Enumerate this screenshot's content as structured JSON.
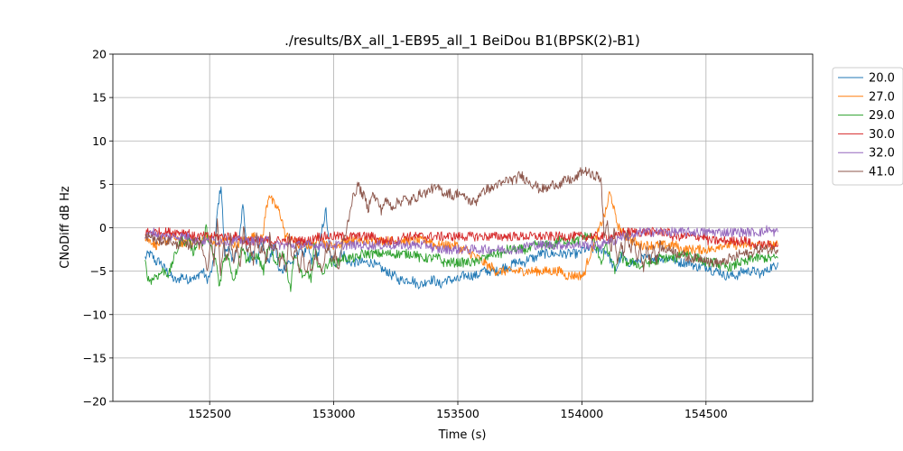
{
  "chart_data": {
    "type": "line",
    "title": "./results/BX_all_1-EB95_all_1 BeiDou B1(BPSK(2)-B1)",
    "xlabel": "Time (s)",
    "ylabel": "CNoDiff dB Hz",
    "xlim": [
      152110,
      154930
    ],
    "ylim": [
      -20,
      20
    ],
    "xticks": [
      152500,
      153000,
      153500,
      154000,
      154500
    ],
    "yticks": [
      -20,
      -15,
      -10,
      -5,
      0,
      5,
      10,
      15,
      20
    ],
    "xtick_labels": [
      "152500",
      "153000",
      "153500",
      "154000",
      "154500"
    ],
    "ytick_labels": [
      "−20",
      "−15",
      "−10",
      "−5",
      "0",
      "5",
      "10",
      "15",
      "20"
    ],
    "grid": true,
    "legend_position": "outside-top-right",
    "x_step": 20,
    "series": [
      {
        "name": "20.0",
        "color": "#1f77b4",
        "x_start": 152240,
        "x_end": 154790,
        "values": [
          -3.5,
          -3,
          -3.2,
          -4,
          -3.8,
          -4.5,
          -5,
          -5.5,
          -6,
          -6.2,
          -5.5,
          -5.8,
          -6,
          -5.5,
          -6,
          -5.2,
          -5,
          -6,
          -5.5,
          -4,
          2,
          5,
          -3,
          -2,
          -4,
          -3,
          -2,
          3,
          -2,
          -4,
          -3,
          -4,
          -1,
          -3,
          -4,
          -3,
          -2,
          -5,
          -5,
          -4,
          -4,
          -4,
          -3,
          -2,
          -3,
          -2,
          -4,
          -3,
          -3,
          0,
          2,
          -3,
          -4,
          -4,
          -3,
          -3,
          -4,
          -4,
          -4,
          -4,
          -4,
          -4,
          -4,
          -4,
          -4.5,
          -4.5,
          -5,
          -5,
          -5.5,
          -5.5,
          -6,
          -6,
          -6,
          -6,
          -6,
          -6.5,
          -6.5,
          -6.5,
          -6,
          -6,
          -6,
          -6.5,
          -6.5,
          -6,
          -6,
          -6,
          -6,
          -6,
          -5.5,
          -5.5,
          -5.5,
          -5.5,
          -5.5,
          -5,
          -5,
          -5,
          -5,
          -5,
          -5,
          -4.5,
          -4.5,
          -4.5,
          -4,
          -4,
          -4,
          -4,
          -3.5,
          -3.5,
          -3.5,
          -3,
          -3,
          -3,
          -3,
          -3,
          -3,
          -3,
          -3,
          -3,
          -3,
          -3,
          -3,
          -2.5,
          -2.5,
          -2.5,
          -2.5,
          -2.5,
          -2.5,
          -2.5,
          -3,
          -4,
          -5,
          -4,
          -3,
          -4,
          -4,
          -4,
          -4,
          -3.5,
          -3.5,
          -3.5,
          -3.5,
          -3.5,
          -3.5,
          -3.5,
          -3.5,
          -3.5,
          -3.5,
          -4,
          -4,
          -4,
          -4,
          -4,
          -4.5,
          -4.5,
          -4.5,
          -4.5,
          -4.5,
          -5,
          -5,
          -5,
          -5.5,
          -5.5,
          -5.5,
          -5.5,
          -5.5,
          -5,
          -5,
          -5,
          -5,
          -5,
          -5.5,
          -5,
          -5,
          -4.5,
          -4.5,
          -4
        ]
      },
      {
        "name": "27.0",
        "color": "#ff7f0e",
        "x_start": 152240,
        "x_end": 154790,
        "values": [
          -1,
          -1.5,
          -1.5,
          -2,
          -2,
          -1.5,
          -1.5,
          -1.5,
          -1,
          -1,
          -1.5,
          -1.5,
          -2,
          -1.5,
          -1.5,
          -1.5,
          -1.5,
          -2,
          -1.5,
          -1,
          -1,
          -1.5,
          -2,
          -2,
          -1.5,
          -1.5,
          -1.5,
          -1.5,
          -2,
          -2,
          -1.5,
          -1.5,
          -1.5,
          -1,
          -1,
          -1,
          -1.5,
          -1,
          2,
          4,
          3,
          2.5,
          2,
          1,
          -1,
          -1,
          -1.5,
          -1.5,
          -2,
          -2,
          -2,
          -2,
          -2,
          -2,
          -1.5,
          -1.5,
          -1.5,
          -2,
          -2,
          -2,
          -2,
          -2,
          -1.5,
          -1.5,
          -1.5,
          -1.5,
          -1.5,
          -1.5,
          -1.5,
          -1.5,
          -1.5,
          -1.5,
          -1.5,
          -1.5,
          -1.5,
          -1.5,
          -1.5,
          -1.5,
          -1.5,
          -1.5,
          -1.5,
          -1.5,
          -1.5,
          -1.5,
          -1.5,
          -1.5,
          -1.5,
          -1.5,
          -1.5,
          -1.5,
          -1.5,
          -2,
          -2,
          -2,
          -2,
          -2,
          -2,
          -2,
          -2,
          -2.5,
          -2.5,
          -2.5,
          -3,
          -3,
          -3.5,
          -3.5,
          -4,
          -4,
          -4.5,
          -4.5,
          -5,
          -5,
          -5,
          -5,
          -5,
          -5,
          -5,
          -5,
          -5,
          -5,
          -5,
          -5,
          -5,
          -5,
          -5,
          -5,
          -5,
          -5,
          -5,
          -5,
          -5,
          -5,
          -5.5,
          -5.5,
          -5.5,
          -5.5,
          -5.5,
          -5.5,
          -5.5,
          -4,
          -3,
          -2,
          -1,
          0,
          1,
          2,
          4,
          3,
          1,
          0,
          -0.5,
          -1,
          -1,
          -1.5,
          -1.5,
          -2,
          -2,
          -2,
          -2,
          -2,
          -2,
          -2,
          -2,
          -2,
          -2,
          -2,
          -2,
          -2,
          -2.5,
          -2.5,
          -2.5,
          -2.5,
          -2.5,
          -2.5,
          -2.5,
          -2.5,
          -2.5,
          -2.5,
          -2.5,
          -2.5,
          -2,
          -2,
          -2,
          -2,
          -2,
          -2,
          -2,
          -2,
          -2,
          -2,
          -2,
          -2,
          -2,
          -2,
          -2,
          -2,
          -2,
          -2,
          -2,
          -2
        ]
      },
      {
        "name": "29.0",
        "color": "#2ca02c",
        "x_start": 152240,
        "x_end": 154790,
        "values": [
          -4,
          -6,
          -6,
          -5.5,
          -5.5,
          -5,
          -5,
          -5.5,
          -4,
          -3,
          -2,
          -1,
          -2,
          -1,
          -3,
          -2,
          -1,
          -2,
          0,
          -2,
          -3,
          -4,
          -7,
          -4,
          -3,
          -4,
          -6,
          -5,
          -3,
          -2,
          -4,
          -3,
          -4,
          -3,
          -4,
          -5,
          -3,
          -2,
          -4,
          -4,
          -3,
          -3,
          -5,
          -7,
          -3,
          -4,
          -5,
          -6,
          -5,
          -6,
          -2,
          -4,
          -5,
          -5,
          -4,
          -4,
          -4,
          -4,
          -3.5,
          -3.5,
          -3.5,
          -3.5,
          -3.5,
          -3.5,
          -3,
          -3,
          -3,
          -3,
          -3,
          -3,
          -3,
          -3,
          -3,
          -3,
          -3,
          -3,
          -3,
          -3,
          -3,
          -3,
          -3,
          -3.5,
          -3.5,
          -3.5,
          -3.5,
          -3.5,
          -3.5,
          -3.5,
          -4,
          -4,
          -4,
          -4,
          -4,
          -4,
          -4,
          -4,
          -4,
          -4,
          -4,
          -3.5,
          -3.5,
          -3.5,
          -3,
          -3,
          -3,
          -3,
          -3,
          -2.5,
          -2.5,
          -2.5,
          -2.5,
          -2.5,
          -2.5,
          -2.5,
          -2.5,
          -2,
          -2,
          -2,
          -2,
          -2,
          -2,
          -2,
          -1.5,
          -1.5,
          -1.5,
          -1.5,
          -1.5,
          -1.5,
          -1.5,
          -1,
          -1,
          -1,
          -1,
          -2,
          -3,
          -4,
          -2,
          -3,
          -4,
          -5,
          -3,
          -3.5,
          -4,
          -4,
          -4,
          -4,
          -4.5,
          -4.5,
          -4,
          -4,
          -4,
          -4,
          -3.5,
          -3.5,
          -3.5,
          -3.5,
          -3.5,
          -3.5,
          -3,
          -3,
          -3,
          -3,
          -3.5,
          -3.5,
          -3.5,
          -4,
          -4,
          -4,
          -4,
          -4,
          -4.5,
          -4.5,
          -4.5,
          -4.5,
          -4.5,
          -4,
          -4,
          -4,
          -4,
          -3.5,
          -3.5,
          -3.5,
          -3.5,
          -3.5,
          -3.5,
          -3.5,
          -3.5,
          -3.5
        ]
      },
      {
        "name": "30.0",
        "color": "#d62728",
        "x_start": 152240,
        "x_end": 154790,
        "values": [
          -0.5,
          -0.5,
          -0.5,
          -0.5,
          -0.5,
          -0.5,
          -0.5,
          -0.5,
          -0.5,
          -0.5,
          -0.5,
          -0.5,
          -0.5,
          -0.5,
          -1,
          -1,
          -1,
          -1,
          -1,
          -1,
          -1,
          -1,
          -1,
          -1,
          -1,
          -1,
          -1,
          -1,
          -1,
          -1.5,
          -1.5,
          -1.5,
          -1.5,
          -1.5,
          -1.5,
          -1.5,
          -1.5,
          -1.5,
          -1.5,
          -1.5,
          -1.5,
          -1.5,
          -1.5,
          -1.5,
          -1.5,
          -1.5,
          -1.5,
          -1.5,
          -1.5,
          -1.5,
          -1.5,
          -1,
          -1,
          -1,
          -1,
          -1,
          -1,
          -1,
          -1,
          -1,
          -1,
          -1,
          -1,
          -1,
          -1,
          -1,
          -1,
          -1,
          -1,
          -1,
          -1.5,
          -1.5,
          -1.5,
          -1.5,
          -1.5,
          -1.5,
          -1.5,
          -1,
          -1,
          -1,
          -1,
          -1,
          -1,
          -1,
          -1,
          -1,
          -1,
          -1,
          -1,
          -1,
          -1,
          -1,
          -1,
          -1,
          -1,
          -1,
          -1,
          -1,
          -1,
          -1,
          -1,
          -1,
          -1,
          -1,
          -1,
          -1,
          -1,
          -1,
          -1,
          -1,
          -1,
          -1,
          -1,
          -1,
          -1,
          -1,
          -1,
          -1,
          -1,
          -1,
          -1,
          -1,
          -1,
          -1,
          -1,
          -1,
          -1,
          -1,
          -1,
          -1,
          -1,
          -1,
          -1,
          -1,
          -1,
          -1,
          -1,
          -1,
          -1,
          -1,
          -1,
          -1,
          -1,
          -0.5,
          -0.5,
          -0.5,
          -0.5,
          -0.5,
          -0.5,
          -0.5,
          -0.5,
          -0.5,
          -0.5,
          -0.5,
          -0.5,
          -0.5,
          -0.5,
          -0.5,
          -1,
          -1,
          -1,
          -1,
          -1,
          -1,
          -1,
          -1,
          -1,
          -1,
          -1,
          -1.5,
          -1.5,
          -1.5,
          -1.5,
          -1.5,
          -1.5,
          -1.5,
          -1.5,
          -1.5,
          -1.5,
          -1.5,
          -1.5,
          -1.5,
          -2,
          -2,
          -2,
          -2,
          -2,
          -2,
          -2,
          -2,
          -2
        ]
      },
      {
        "name": "32.0",
        "color": "#9467bd",
        "x_start": 152240,
        "x_end": 154790,
        "values": [
          -1,
          -1,
          -0.5,
          -0.5,
          -1,
          -1,
          -1,
          -1,
          -1,
          -1,
          -1,
          -1,
          -1,
          -1,
          -1,
          -1.5,
          -1.5,
          -1.5,
          -1.5,
          -1.5,
          -1.5,
          -1.5,
          -1.5,
          -1.5,
          -1.5,
          -1.5,
          -1.5,
          -1.5,
          -1.5,
          -1.5,
          -1.5,
          -1.5,
          -1.5,
          -1.5,
          -1.5,
          -1.5,
          -1.5,
          -1.5,
          -2,
          -2,
          -2,
          -2,
          -2,
          -2,
          -2,
          -2,
          -2,
          -2,
          -2,
          -2,
          -2,
          -2,
          -2,
          -2,
          -2,
          -2,
          -2,
          -2,
          -2,
          -2,
          -2,
          -2,
          -2,
          -2,
          -2,
          -2,
          -2,
          -2,
          -2,
          -2,
          -2,
          -2,
          -2,
          -2,
          -2,
          -2,
          -2,
          -2,
          -2,
          -2,
          -2,
          -2,
          -2,
          -2,
          -2,
          -2,
          -2,
          -2.5,
          -2.5,
          -2.5,
          -2.5,
          -2.5,
          -2.5,
          -2.5,
          -2.5,
          -2.5,
          -2.5,
          -2.5,
          -2.5,
          -2.5,
          -2.5,
          -2.5,
          -2.5,
          -2.5,
          -2.5,
          -2.5,
          -2.5,
          -2.5,
          -2.5,
          -2.5,
          -2.5,
          -2.5,
          -2.5,
          -2.5,
          -2.5,
          -2,
          -2,
          -2,
          -2,
          -2,
          -2,
          -2,
          -2,
          -2,
          -2,
          -2,
          -2,
          -2,
          -2,
          -2,
          -2,
          -2,
          -2,
          -2,
          -2,
          -2,
          -2,
          -2,
          -2,
          -1.5,
          -1.5,
          -1.5,
          -1.5,
          -1,
          -1,
          -1,
          -1,
          -1,
          -1,
          -0.5,
          -0.5,
          -0.5,
          -0.5,
          -0.5,
          -0.5,
          -0.5,
          -0.5,
          -0.5,
          -0.5,
          -0.5,
          -0.5,
          -0.5,
          -0.5,
          -0.5,
          -0.5,
          -0.5,
          -0.5,
          -0.5,
          -0.5,
          -0.5,
          -0.5,
          -0.5,
          -0.5,
          -0.5,
          -0.5,
          -0.5,
          -0.5,
          -0.5,
          -0.5,
          -0.5,
          -0.5,
          -0.5,
          -0.5,
          -0.5,
          -0.5,
          -0.5,
          -0.5,
          -0.5,
          0,
          -0.5,
          -0.5,
          -0.5
        ]
      },
      {
        "name": "41.0",
        "color": "#8c564b",
        "x_start": 152240,
        "x_end": 154790,
        "values": [
          -1,
          -1,
          -1,
          -1.5,
          -1.5,
          -1.5,
          -1.5,
          -1.5,
          -1.5,
          -2,
          -2,
          -1.5,
          -2,
          -2,
          -2,
          -1.5,
          -1.5,
          -2,
          -3,
          -5,
          -1,
          -4,
          1,
          -5,
          -2,
          -4,
          -1,
          -4,
          -2,
          -5,
          0,
          -3,
          -2,
          -4,
          -1,
          -3,
          -2,
          -4,
          -1,
          -3,
          -2,
          -4,
          -3,
          -5,
          -1,
          -4,
          -2,
          -5,
          -3,
          -5,
          -4,
          -5,
          -3,
          -4,
          -5,
          -3,
          -2,
          -4,
          -3,
          -5,
          -2,
          -1,
          1,
          3,
          4,
          5,
          4,
          3.5,
          2,
          4,
          3.5,
          3,
          2,
          3,
          3,
          2.5,
          2.5,
          3,
          3,
          3.5,
          3,
          3,
          3.5,
          3.5,
          4,
          4,
          4,
          4.5,
          4.5,
          4.5,
          4.5,
          4,
          4,
          4,
          3.5,
          4,
          4,
          3.5,
          3.5,
          3,
          3,
          3,
          4,
          4,
          4.5,
          4.5,
          4.5,
          5,
          5,
          5,
          5.5,
          5.5,
          5.5,
          5.5,
          6,
          6,
          5.5,
          5.5,
          5,
          5,
          4.5,
          4.5,
          4.5,
          4.5,
          5,
          5,
          5,
          5,
          5.5,
          5.5,
          5.5,
          5.5,
          6,
          6.5,
          6.5,
          6.5,
          6,
          6,
          6,
          5.5,
          -1,
          1,
          -3,
          0,
          -4,
          -2,
          -3,
          0,
          -3,
          -1,
          -4,
          -2,
          -5,
          -2,
          -4,
          -2,
          -4,
          -2,
          -2.5,
          -2.5,
          -2.5,
          -2.5,
          -3,
          -3,
          -3,
          -3.5,
          -3.5,
          -3.5,
          -3.5,
          -3.5,
          -3.5,
          -3.5,
          -4,
          -4,
          -4,
          -4,
          -4,
          -4,
          -3.5,
          -3.5,
          -3.5,
          -3,
          -3,
          -3,
          -3,
          -3,
          -2.5,
          -2.5,
          -2.5,
          -2.5,
          -2.5,
          -2.5,
          -2.5,
          -2.5
        ]
      }
    ]
  }
}
